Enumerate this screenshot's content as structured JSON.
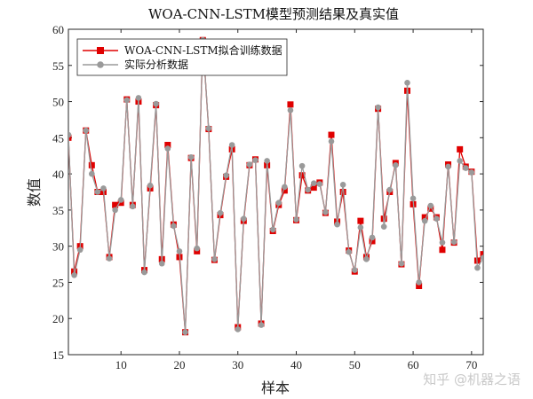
{
  "chart_data": {
    "type": "line",
    "title": "WOA-CNN-LSTM模型预测结果及真实值",
    "xlabel": "样本",
    "ylabel": "数值",
    "xlim": [
      1,
      72
    ],
    "ylim": [
      15,
      60
    ],
    "xticks": [
      10,
      20,
      30,
      40,
      50,
      60,
      70
    ],
    "yticks": [
      15,
      20,
      25,
      30,
      35,
      40,
      45,
      50,
      55,
      60
    ],
    "grid": false,
    "legend_position": "top-left",
    "x": [
      1,
      2,
      3,
      4,
      5,
      6,
      7,
      8,
      9,
      10,
      11,
      12,
      13,
      14,
      15,
      16,
      17,
      18,
      19,
      20,
      21,
      22,
      23,
      24,
      25,
      26,
      27,
      28,
      29,
      30,
      31,
      32,
      33,
      34,
      35,
      36,
      37,
      38,
      39,
      40,
      41,
      42,
      43,
      44,
      45,
      46,
      47,
      48,
      49,
      50,
      51,
      52,
      53,
      54,
      55,
      56,
      57,
      58,
      59,
      60,
      61,
      62,
      63,
      64,
      65,
      66,
      67,
      68,
      69,
      70,
      71,
      72
    ],
    "series": [
      {
        "name": "WOA-CNN-LSTM拟合训练数据",
        "color": "#e00000",
        "marker": "square",
        "values": [
          45.0,
          26.5,
          30.0,
          46.0,
          41.2,
          37.5,
          37.5,
          28.5,
          35.7,
          36.0,
          50.3,
          35.7,
          50.0,
          26.7,
          38.0,
          49.5,
          28.2,
          44.0,
          33.0,
          28.5,
          18.1,
          42.2,
          29.3,
          58.5,
          46.2,
          28.1,
          34.3,
          39.6,
          43.4,
          18.8,
          33.5,
          41.2,
          42.0,
          19.3,
          41.2,
          32.1,
          35.7,
          37.7,
          49.6,
          33.6,
          39.8,
          37.7,
          38.1,
          38.8,
          34.6,
          45.4,
          33.4,
          37.5,
          29.4,
          26.5,
          33.5,
          28.5,
          30.7,
          49.0,
          33.8,
          37.5,
          41.5,
          27.5,
          51.5,
          35.8,
          24.5,
          34.0,
          35.2,
          34.0,
          29.5,
          41.3,
          30.5,
          43.4,
          41.0,
          40.3,
          28.0,
          28.9
        ]
      },
      {
        "name": "实际分析数据",
        "color": "#9a9a9a",
        "marker": "circle",
        "values": [
          45.4,
          26.0,
          29.5,
          46.0,
          40.0,
          37.5,
          38.0,
          28.3,
          35.0,
          36.4,
          50.2,
          35.5,
          50.5,
          26.4,
          38.4,
          49.7,
          27.6,
          43.5,
          32.8,
          29.3,
          18.1,
          42.3,
          29.7,
          58.5,
          46.3,
          28.2,
          34.6,
          39.8,
          44.0,
          18.5,
          33.8,
          41.3,
          41.9,
          19.1,
          41.8,
          32.3,
          36.0,
          38.2,
          48.8,
          33.7,
          41.1,
          37.8,
          38.7,
          38.6,
          34.7,
          44.5,
          33.0,
          38.5,
          29.2,
          26.7,
          32.6,
          28.2,
          31.2,
          49.2,
          32.7,
          37.8,
          41.2,
          27.6,
          52.6,
          36.6,
          25.0,
          33.5,
          35.6,
          33.8,
          30.5,
          41.0,
          30.6,
          41.8,
          40.8,
          40.2,
          27.0,
          28.4
        ]
      }
    ]
  },
  "watermark": "知乎 @机器之语"
}
